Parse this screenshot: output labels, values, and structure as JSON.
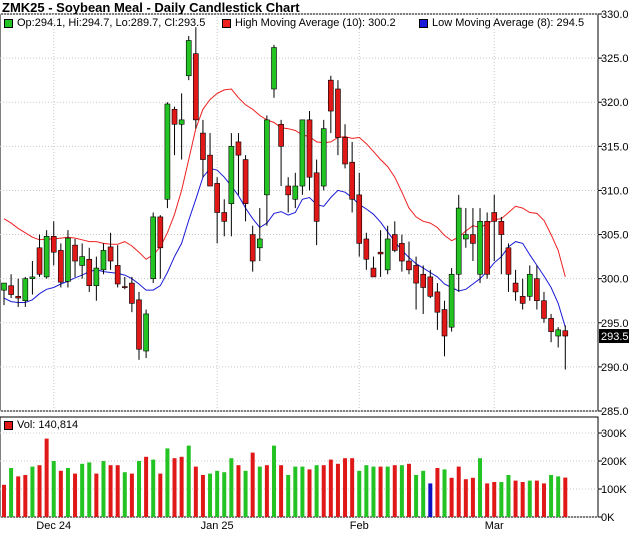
{
  "title": "ZMK25 - Soybean Meal - Daily Candlestick Chart",
  "legend": {
    "ohlc": "Op:294.1, Hi:294.7, Lo:289.7, Cl:293.5",
    "high_ma": "High Moving Average (10): 300.2",
    "low_ma": "Low Moving Average (8): 294.5"
  },
  "volume_label": "Vol: 140,814",
  "last_price_label": "293.5",
  "colors": {
    "up": "#22c322",
    "down": "#e01818",
    "high_ma": "#ee2020",
    "low_ma": "#1a1ad8",
    "volume_blue": "#1010c0"
  },
  "chart_data": {
    "type": "candlestick",
    "ylim": [
      285,
      330
    ],
    "ytick_labels": [
      "285.0",
      "290.0",
      "295.0",
      "300.0",
      "305.0",
      "310.0",
      "315.0",
      "320.0",
      "325.0",
      "330.0"
    ],
    "volume_ylim": [
      0,
      300000
    ],
    "volume_tick_labels": [
      "0K",
      "100K",
      "200K",
      "300K"
    ],
    "xtick_labels": [
      {
        "label": "Dec 24",
        "index": 7
      },
      {
        "label": "Jan 25",
        "index": 30
      },
      {
        "label": "Feb",
        "index": 50
      },
      {
        "label": "Mar",
        "index": 69
      }
    ],
    "candles": [
      [
        298.7,
        299.5,
        297.0,
        299.5
      ],
      [
        299.2,
        300.5,
        297.8,
        298.2
      ],
      [
        298.0,
        300.0,
        296.8,
        297.8
      ],
      [
        297.5,
        300.2,
        296.8,
        300.0
      ],
      [
        300.0,
        302.0,
        298.2,
        300.2
      ],
      [
        303.5,
        305.0,
        300.2,
        300.5
      ],
      [
        300.2,
        305.5,
        300.0,
        304.8
      ],
      [
        304.8,
        306.5,
        301.5,
        303.0
      ],
      [
        303.2,
        304.0,
        299.0,
        299.6
      ],
      [
        299.7,
        305.5,
        299.0,
        304.6
      ],
      [
        303.8,
        304.5,
        300.2,
        302.0
      ],
      [
        301.5,
        304.0,
        300.0,
        302.5
      ],
      [
        302.2,
        303.5,
        298.5,
        299.2
      ],
      [
        299.2,
        302.5,
        297.5,
        301.2
      ],
      [
        301.0,
        304.0,
        300.5,
        303.2
      ],
      [
        303.6,
        305.2,
        301.0,
        302.0
      ],
      [
        301.5,
        303.8,
        299.0,
        299.4
      ],
      [
        299.1,
        300.2,
        298.8,
        299.0
      ],
      [
        299.5,
        300.2,
        296.2,
        297.2
      ],
      [
        297.6,
        298.5,
        290.8,
        292.0
      ],
      [
        291.8,
        296.5,
        291.0,
        296.0
      ],
      [
        300.0,
        307.5,
        299.5,
        307.0
      ],
      [
        307.0,
        307.2,
        300.0,
        303.5
      ],
      [
        309.0,
        320.0,
        308.0,
        319.8
      ],
      [
        319.2,
        319.5,
        314.0,
        317.5
      ],
      [
        317.5,
        321.0,
        313.5,
        318.0
      ],
      [
        323.0,
        327.5,
        322.5,
        327.0
      ],
      [
        325.5,
        328.5,
        317.0,
        318.0
      ],
      [
        316.5,
        318.0,
        311.5,
        313.5
      ],
      [
        314.0,
        316.5,
        310.5,
        310.5
      ],
      [
        310.8,
        311.5,
        304.0,
        307.5
      ],
      [
        307.5,
        309.0,
        304.8,
        306.5
      ],
      [
        308.5,
        316.5,
        304.8,
        315.0
      ],
      [
        315.5,
        316.5,
        309.5,
        314.0
      ],
      [
        313.5,
        314.0,
        306.5,
        308.5
      ],
      [
        305.0,
        306.0,
        300.8,
        302.0
      ],
      [
        303.5,
        308.0,
        302.0,
        304.5
      ],
      [
        309.5,
        318.5,
        306.0,
        318.0
      ],
      [
        321.5,
        326.5,
        320.5,
        326.2
      ],
      [
        317.5,
        318.0,
        310.5,
        315.0
      ],
      [
        310.5,
        311.5,
        307.5,
        309.5
      ],
      [
        309.0,
        312.0,
        308.0,
        310.5
      ],
      [
        310.5,
        318.0,
        309.5,
        318.0
      ],
      [
        318.0,
        319.0,
        310.0,
        311.5
      ],
      [
        312.0,
        313.5,
        303.8,
        306.5
      ],
      [
        310.5,
        318.0,
        310.0,
        317.0
      ],
      [
        322.5,
        323.0,
        316.5,
        319.0
      ],
      [
        321.5,
        322.5,
        314.0,
        316.0
      ],
      [
        316.0,
        317.5,
        312.5,
        313.0
      ],
      [
        313.2,
        315.5,
        307.5,
        309.0
      ],
      [
        309.5,
        312.0,
        302.5,
        304.0
      ],
      [
        304.5,
        305.2,
        301.0,
        302.2
      ],
      [
        301.2,
        302.5,
        300.2,
        300.2
      ],
      [
        303.0,
        305.5,
        300.2,
        302.8
      ],
      [
        301.0,
        306.0,
        300.5,
        304.5
      ],
      [
        305.0,
        306.5,
        303.0,
        303.2
      ],
      [
        304.0,
        305.0,
        300.8,
        302.0
      ],
      [
        302.0,
        304.2,
        300.5,
        301.0
      ],
      [
        301.5,
        302.5,
        296.5,
        299.5
      ],
      [
        300.5,
        301.5,
        296.0,
        299.0
      ],
      [
        300.2,
        301.0,
        297.8,
        298.0
      ],
      [
        298.5,
        299.5,
        294.2,
        296.2
      ],
      [
        296.5,
        297.5,
        291.2,
        293.5
      ],
      [
        294.5,
        301.2,
        294.0,
        300.5
      ],
      [
        300.5,
        309.5,
        298.5,
        308.0
      ],
      [
        304.5,
        308.0,
        303.5,
        305.0
      ],
      [
        305.0,
        308.0,
        302.0,
        304.0
      ],
      [
        300.5,
        308.0,
        299.5,
        306.5
      ],
      [
        306.5,
        307.5,
        300.0,
        300.5
      ],
      [
        307.5,
        309.5,
        302.0,
        306.5
      ],
      [
        306.5,
        307.0,
        300.5,
        305.0
      ],
      [
        303.5,
        304.0,
        298.5,
        300.5
      ],
      [
        299.5,
        301.0,
        297.5,
        298.5
      ],
      [
        298.0,
        300.0,
        296.5,
        297.2
      ],
      [
        298.0,
        301.5,
        297.5,
        300.5
      ],
      [
        300.0,
        301.5,
        296.5,
        297.5
      ],
      [
        297.5,
        298.5,
        295.0,
        295.5
      ],
      [
        295.5,
        296.0,
        292.8,
        294.0
      ],
      [
        293.5,
        294.5,
        292.2,
        294.2
      ],
      [
        294.1,
        294.7,
        289.7,
        293.5
      ]
    ],
    "volume": [
      [
        115000,
        "down"
      ],
      [
        175000,
        "up"
      ],
      [
        145000,
        "down"
      ],
      [
        150000,
        "down"
      ],
      [
        180000,
        "up"
      ],
      [
        185000,
        "down"
      ],
      [
        280000,
        "down"
      ],
      [
        200000,
        "up"
      ],
      [
        165000,
        "down"
      ],
      [
        175000,
        "up"
      ],
      [
        155000,
        "down"
      ],
      [
        190000,
        "up"
      ],
      [
        195000,
        "up"
      ],
      [
        155000,
        "down"
      ],
      [
        200000,
        "up"
      ],
      [
        185000,
        "down"
      ],
      [
        185000,
        "down"
      ],
      [
        160000,
        "up"
      ],
      [
        155000,
        "down"
      ],
      [
        200000,
        "up"
      ],
      [
        215000,
        "down"
      ],
      [
        205000,
        "up"
      ],
      [
        155000,
        "down"
      ],
      [
        245000,
        "up"
      ],
      [
        210000,
        "down"
      ],
      [
        215000,
        "down"
      ],
      [
        255000,
        "up"
      ],
      [
        180000,
        "down"
      ],
      [
        150000,
        "down"
      ],
      [
        155000,
        "up"
      ],
      [
        165000,
        "up"
      ],
      [
        160000,
        "up"
      ],
      [
        210000,
        "up"
      ],
      [
        185000,
        "down"
      ],
      [
        165000,
        "up"
      ],
      [
        230000,
        "down"
      ],
      [
        180000,
        "up"
      ],
      [
        185000,
        "down"
      ],
      [
        255000,
        "up"
      ],
      [
        185000,
        "down"
      ],
      [
        150000,
        "up"
      ],
      [
        180000,
        "up"
      ],
      [
        180000,
        "up"
      ],
      [
        170000,
        "down"
      ],
      [
        185000,
        "up"
      ],
      [
        185000,
        "down"
      ],
      [
        205000,
        "down"
      ],
      [
        190000,
        "down"
      ],
      [
        210000,
        "down"
      ],
      [
        210000,
        "down"
      ],
      [
        165000,
        "up"
      ],
      [
        185000,
        "up"
      ],
      [
        180000,
        "up"
      ],
      [
        180000,
        "down"
      ],
      [
        180000,
        "up"
      ],
      [
        185000,
        "down"
      ],
      [
        185000,
        "up"
      ],
      [
        190000,
        "down"
      ],
      [
        150000,
        "up"
      ],
      [
        165000,
        "up"
      ],
      [
        120000,
        "blue"
      ],
      [
        175000,
        "down"
      ],
      [
        170000,
        "up"
      ],
      [
        140000,
        "down"
      ],
      [
        180000,
        "down"
      ],
      [
        135000,
        "down"
      ],
      [
        140000,
        "down"
      ],
      [
        210000,
        "up"
      ],
      [
        120000,
        "down"
      ],
      [
        125000,
        "down"
      ],
      [
        125000,
        "up"
      ],
      [
        150000,
        "up"
      ],
      [
        130000,
        "down"
      ],
      [
        125000,
        "down"
      ],
      [
        130000,
        "up"
      ],
      [
        130000,
        "down"
      ],
      [
        120000,
        "down"
      ],
      [
        150000,
        "up"
      ],
      [
        145000,
        "up"
      ],
      [
        140814,
        "down"
      ]
    ],
    "high_ma_series": {
      "start_index": 0,
      "values": [
        306.8,
        306.3,
        305.7,
        305.2,
        304.7,
        304.4,
        304.5,
        304.5,
        304.6,
        304.7,
        304.6,
        304.4,
        304.2,
        304.2,
        304.0,
        303.9,
        303.9,
        304.2,
        303.7,
        303.0,
        302.2,
        302.7,
        303.6,
        305.2,
        307.3,
        310.0,
        313.5,
        317.0,
        319.2,
        320.3,
        321.0,
        321.4,
        321.5,
        320.5,
        319.7,
        319.2,
        318.5,
        318.0,
        317.7,
        317.1,
        317.0,
        316.8,
        316.3,
        316.1,
        315.5,
        315.4,
        315.5,
        316.0,
        316.1,
        315.9,
        316.0,
        315.3,
        314.4,
        313.5,
        312.7,
        311.5,
        309.8,
        308.0,
        307.0,
        306.5,
        306.3,
        305.8,
        304.9,
        304.3,
        304.7,
        305.4,
        306.0,
        305.8,
        306.2,
        306.7,
        306.8,
        307.5,
        308.2,
        308.0,
        307.5,
        307.4,
        306.6,
        305.0,
        303.2,
        300.2
      ]
    },
    "low_ma_series": {
      "start_index": 0,
      "values": [
        297.8,
        297.4,
        297.3,
        297.3,
        297.6,
        298.3,
        298.8,
        299.0,
        299.4,
        299.7,
        300.1,
        300.4,
        300.8,
        301.0,
        300.8,
        300.7,
        300.6,
        300.4,
        300.0,
        299.4,
        298.7,
        298.7,
        299.2,
        300.7,
        302.5,
        304.0,
        306.6,
        309.0,
        311.5,
        312.5,
        312.3,
        311.5,
        310.5,
        309.4,
        308.0,
        306.8,
        305.8,
        306.3,
        307.4,
        307.6,
        307.2,
        307.5,
        309.0,
        309.2,
        308.4,
        308.2,
        309.2,
        310.0,
        309.8,
        309.2,
        308.4,
        307.9,
        307.3,
        306.4,
        305.3,
        304.2,
        303.2,
        302.4,
        301.7,
        301.2,
        300.7,
        300.2,
        299.4,
        299.0,
        298.6,
        298.8,
        299.4,
        300.0,
        300.8,
        301.8,
        302.5,
        303.6,
        304.2,
        304.0,
        302.7,
        301.5,
        300.3,
        299.0,
        297.2,
        294.5
      ]
    }
  }
}
